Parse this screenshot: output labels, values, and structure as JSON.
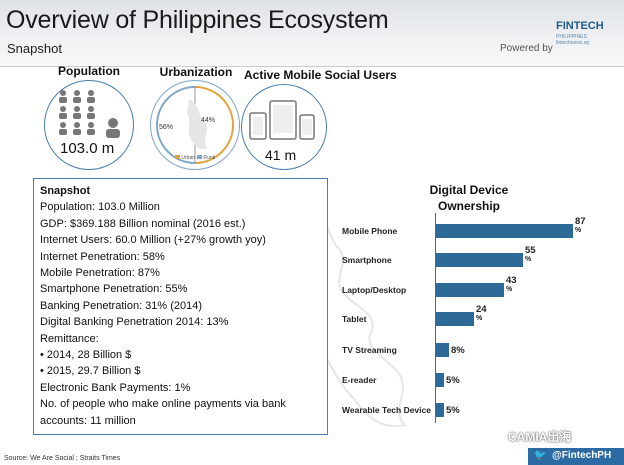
{
  "header": {
    "title": "Overview of Philippines Ecosystem",
    "subtitle": "Snapshot",
    "logo_text": "FINTECH",
    "logo_sub1": "PHILIPPINES",
    "logo_sub2": "fintechnews.sg",
    "powered_by": "Powered by"
  },
  "circles": {
    "population": {
      "label": "Population",
      "value": "103.0 m"
    },
    "urbanization": {
      "label": "Urbanization",
      "urban_pct": "56%",
      "rural_pct": "44%",
      "legend_urban": "Urban",
      "legend_rural": "Rural"
    },
    "mobile_social": {
      "label": "Active Mobile Social Users",
      "value": "41 m"
    }
  },
  "snapshot": {
    "title": "Snapshot",
    "lines": [
      "Population: 103.0 Million",
      "GDP: $369.188 Billion nominal (2016 est.)",
      "Internet Users: 60.0 Million (+27% growth yoy)",
      "Internet Penetration: 58%",
      "Mobile Penetration: 87%",
      "Smartphone Penetration: 55%",
      "Banking Penetration: 31% (2014)",
      "Digital Banking Penetration 2014: 13%",
      "Remittance:",
      "•  2014, 28 Billion $",
      "•  2015, 29.7 Billion $",
      "Electronic Bank Payments: 1%",
      "No. of people who make online payments via bank",
      "accounts: 11 million"
    ]
  },
  "chart_data": {
    "type": "bar",
    "title_line1": "Digital Device",
    "title_line2": "Ownership",
    "categories": [
      "Mobile Phone",
      "Smartphone",
      "Laptop/Desktop",
      "Tablet",
      "TV Streaming",
      "E-reader",
      "Wearable Tech Device"
    ],
    "values": [
      87,
      55,
      43,
      24,
      8,
      5,
      5
    ],
    "unit": "%",
    "color": "#2e6a98"
  },
  "footer": {
    "source": "Source: We Are Social ; Straits Times",
    "watermark": "CAMIA出海",
    "twitter_handle": "@FintechPH"
  }
}
